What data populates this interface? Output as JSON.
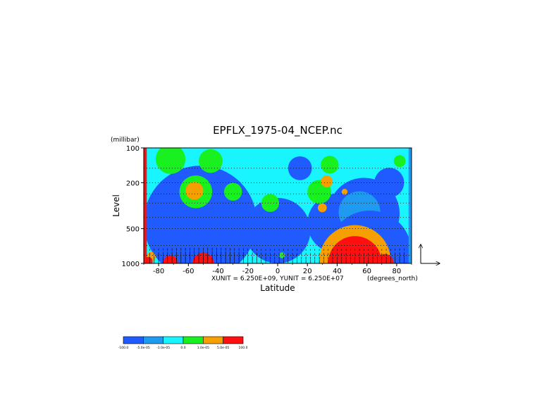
{
  "chart_data": {
    "type": "heatmap",
    "title": "EPFLX_1975-04_NCEP.nc",
    "xlabel": "Latitude",
    "ylabel": "Level",
    "y_unit_label": "(millibar)",
    "x_unit_label": "(degrees_north)",
    "vector_scale_text": "XUNIT = 6.250E+09, YUNIT = 6.250E+07",
    "xlim": [
      -90,
      90
    ],
    "ylim": [
      1000,
      100
    ],
    "y_scale": "log",
    "x_ticks": [
      {
        "value": -80,
        "label": "-80"
      },
      {
        "value": -60,
        "label": "-60"
      },
      {
        "value": -40,
        "label": "-40"
      },
      {
        "value": -20,
        "label": "-20"
      },
      {
        "value": 0,
        "label": "0"
      },
      {
        "value": 20,
        "label": "20"
      },
      {
        "value": 40,
        "label": "40"
      },
      {
        "value": 60,
        "label": "60"
      },
      {
        "value": 80,
        "label": "80"
      }
    ],
    "y_ticks": [
      {
        "value": 100,
        "label": "100"
      },
      {
        "value": 200,
        "label": "200"
      },
      {
        "value": 500,
        "label": "500"
      },
      {
        "value": 1000,
        "label": "1000"
      }
    ],
    "grid_levels": [
      150,
      200,
      250,
      300,
      400,
      500,
      700,
      850
    ],
    "grid": true,
    "colorbar": {
      "position": "bottom-left",
      "colors": [
        "#1f5bff",
        "#1e9bf0",
        "#18f5ff",
        "#19f01f",
        "#f5a000",
        "#ff0f0f"
      ],
      "labels": [
        "-100.0",
        "-5.0e-05",
        "-1.0e-05",
        "0.0",
        "1.0e-05",
        "5.0e-05",
        "100.0"
      ]
    },
    "regions": [
      {
        "class": 2,
        "lon": -74,
        "lat": 440,
        "rx": 12,
        "ry_log": 0.13
      },
      {
        "class": 1,
        "lon": -52,
        "lat": 440,
        "rx": 38,
        "ry_log": 0.14
      },
      {
        "class": 1,
        "lon": -42,
        "lat": 300,
        "rx": 5,
        "ry_log": 0.05
      },
      {
        "class": 1,
        "lon": 0,
        "lat": 520,
        "rx": 22,
        "ry_log": 0.08
      },
      {
        "class": 1,
        "lon": 58,
        "lat": 370,
        "rx": 24,
        "ry_log": 0.11
      },
      {
        "class": 1,
        "lon": 40,
        "lat": 450,
        "rx": 20,
        "ry_log": 0.09
      },
      {
        "class": 1,
        "lon": 15,
        "lat": 150,
        "rx": 8,
        "ry_log": 0.13
      },
      {
        "class": 1,
        "lon": 75,
        "lat": 200,
        "rx": 10,
        "ry_log": 0.12
      },
      {
        "class": 2,
        "lon": 55,
        "lat": 360,
        "rx": 14,
        "ry_log": 0.07
      },
      {
        "class": 4,
        "lon": -72,
        "lat": 125,
        "rx": 10,
        "ry_log": 0.08
      },
      {
        "class": 4,
        "lon": -45,
        "lat": 130,
        "rx": 8,
        "ry_log": 0.07
      },
      {
        "class": 4,
        "lon": -55,
        "lat": 240,
        "rx": 11,
        "ry_log": 0.07
      },
      {
        "class": 4,
        "lon": -30,
        "lat": 240,
        "rx": 6,
        "ry_log": 0.1
      },
      {
        "class": 4,
        "lon": -5,
        "lat": 300,
        "rx": 6,
        "ry_log": 0.05
      },
      {
        "class": 4,
        "lon": 28,
        "lat": 240,
        "rx": 8,
        "ry_log": 0.12
      },
      {
        "class": 4,
        "lon": 35,
        "lat": 140,
        "rx": 6,
        "ry_log": 0.08
      },
      {
        "class": 4,
        "lon": 82,
        "lat": 130,
        "rx": 4,
        "ry_log": 0.06
      },
      {
        "class": 5,
        "lon": -56,
        "lat": 235,
        "rx": 6,
        "ry_log": 0.045
      },
      {
        "class": 5,
        "lon": 33,
        "lat": 195,
        "rx": 4,
        "ry_log": 0.06
      },
      {
        "class": 5,
        "lon": 30,
        "lat": 330,
        "rx": 3,
        "ry_log": 0.045
      },
      {
        "class": 5,
        "lon": 45,
        "lat": 240,
        "rx": 2,
        "ry_log": 0.02
      },
      {
        "class": 5,
        "lon": 84,
        "lat": 670,
        "rx": 3,
        "ry_log": 0.04
      },
      {
        "class": 4,
        "lon": 3,
        "lat": 850,
        "rx": 2,
        "ry_log": 0.02
      },
      {
        "class": 1,
        "lon": 62,
        "lat": 800,
        "rx": 28,
        "ry_log": 0.07
      },
      {
        "class": 5,
        "lon": -85,
        "lat": 870,
        "rx": 3,
        "ry_log": 0.05
      },
      {
        "class": 6,
        "lon": -87,
        "lat": 960,
        "rx": 3,
        "ry_log": 0.03
      },
      {
        "class": 6,
        "lon": -72,
        "lat": 990,
        "rx": 5,
        "ry_log": 0.015
      },
      {
        "class": 6,
        "lon": -50,
        "lat": 990,
        "rx": 7,
        "ry_log": 0.015
      },
      {
        "class": 5,
        "lon": 52,
        "lat": 950,
        "rx": 24,
        "ry_log": 0.035
      },
      {
        "class": 6,
        "lon": 52,
        "lat": 990,
        "rx": 18,
        "ry_log": 0.018
      },
      {
        "class": 6,
        "lon": 72,
        "lat": 990,
        "rx": 6,
        "ry_log": 0.015
      }
    ],
    "edge_bands": [
      {
        "class": 6,
        "lon_from": -90,
        "lon_to": -88
      },
      {
        "class": 2,
        "lon_from": 88,
        "lon_to": 90
      }
    ]
  }
}
